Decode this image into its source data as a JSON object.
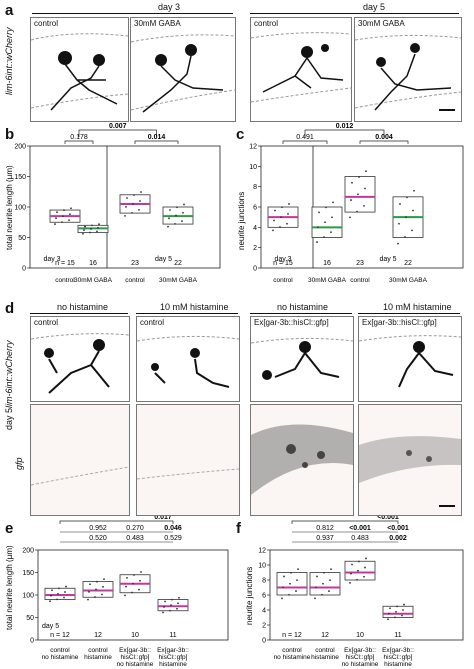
{
  "panel_letters": {
    "a": "a",
    "b": "b",
    "c": "c",
    "d": "d",
    "e": "e",
    "f": "f"
  },
  "a": {
    "day_labels": [
      "day 3",
      "day 5"
    ],
    "row_label": "lim-6int::wCherry",
    "images": [
      "control",
      "30mM GABA",
      "control",
      "30mM GABA"
    ]
  },
  "d": {
    "headers": [
      "no histamine",
      "10 mM histamine",
      "no histamine",
      "10 mM histamine"
    ],
    "row_labels": [
      "lim-6int::wCherry",
      "gfp"
    ],
    "side_label": "day 5",
    "images_top": [
      "control",
      "control",
      "Ex[gar-3b::hisCl::gfp]",
      "Ex[gar-3b::hisCl::gfp]"
    ]
  },
  "chart_data": [
    {
      "id": "b",
      "type": "box",
      "ylabel": "total neurite length (µm)",
      "yticks": [
        0,
        50,
        100,
        150,
        200
      ],
      "ylim": [
        0,
        200
      ],
      "groups": [
        {
          "day": "day 3",
          "categories": [
            "control",
            "30mM GABA"
          ],
          "n": [
            "n = 15",
            "16"
          ]
        },
        {
          "day": "day 5",
          "categories": [
            "control",
            "30mM GABA"
          ],
          "n": [
            "23",
            "22"
          ]
        }
      ],
      "xlabels": [
        "control",
        "30mM GABA",
        "control",
        "30mM GABA"
      ],
      "medians": [
        85,
        65,
        105,
        85
      ],
      "q1": [
        75,
        58,
        90,
        72
      ],
      "q3": [
        95,
        70,
        120,
        100
      ],
      "pvalues": [
        {
          "text": "0.178",
          "bold": false
        },
        {
          "text": "0.007",
          "bold": true
        },
        {
          "text": "0.014",
          "bold": true
        }
      ],
      "group_labels": [
        "day 3",
        "day 5"
      ]
    },
    {
      "id": "c",
      "type": "box",
      "ylabel": "neurite junctions",
      "yticks": [
        0,
        2,
        4,
        6,
        8,
        10,
        12
      ],
      "ylim": [
        0,
        12
      ],
      "groups": [
        {
          "day": "day 3",
          "n": [
            "n = 15",
            "16"
          ]
        },
        {
          "day": "day 5",
          "n": [
            "23",
            "22"
          ]
        }
      ],
      "xlabels": [
        "control",
        "30mM GABA",
        "control",
        "30mM GABA"
      ],
      "medians": [
        5,
        4,
        7,
        5
      ],
      "q1": [
        4,
        3,
        5.5,
        3
      ],
      "q3": [
        6,
        6,
        9,
        7
      ],
      "pvalues": [
        {
          "text": "0.491",
          "bold": false
        },
        {
          "text": "0.012",
          "bold": true
        },
        {
          "text": "0.004",
          "bold": true
        }
      ],
      "group_labels": [
        "day 3",
        "day 5"
      ]
    },
    {
      "id": "e",
      "type": "box",
      "ylabel": "total neurite length (µm)",
      "yticks": [
        0,
        50,
        100,
        150,
        200
      ],
      "ylim": [
        0,
        200
      ],
      "n": [
        "n = 12",
        "12",
        "10",
        "11"
      ],
      "xlabels": [
        [
          "control",
          "no histamine"
        ],
        [
          "control",
          "histamine"
        ],
        [
          "Ex[gar-3b::",
          "hisCl::gfp]",
          "no histamine"
        ],
        [
          "Ex[gar-3b::",
          "hisCl::gfp]",
          "histamine"
        ]
      ],
      "medians": [
        100,
        110,
        125,
        75
      ],
      "q1": [
        90,
        95,
        105,
        65
      ],
      "q3": [
        115,
        130,
        145,
        90
      ],
      "pvalues_rows": [
        [
          "0.017"
        ],
        [
          "0.952",
          "0.270",
          "0.046"
        ],
        [
          "0.520",
          "0.483",
          "0.529"
        ]
      ],
      "group_label": "day 5"
    },
    {
      "id": "f",
      "type": "box",
      "ylabel": "neurite junctions",
      "yticks": [
        0,
        2,
        4,
        6,
        8,
        10,
        12
      ],
      "ylim": [
        0,
        12
      ],
      "n": [
        "n = 12",
        "12",
        "10",
        "11"
      ],
      "xlabels": [
        [
          "control",
          "no histamine"
        ],
        [
          "control",
          "histamine"
        ],
        [
          "Ex[gar-3b::",
          "hisCl::gfp]",
          "no histamine"
        ],
        [
          "Ex[gar-3b::",
          "hisCl::gfp]",
          "histamine"
        ]
      ],
      "medians": [
        7,
        7,
        9,
        3.5
      ],
      "q1": [
        6,
        6,
        8,
        3
      ],
      "q3": [
        9,
        9,
        10.5,
        4.5
      ],
      "pvalues_rows": [
        [
          "<0.001"
        ],
        [
          "0.812",
          "<0.001",
          "<0.001"
        ],
        [
          "0.937",
          "0.483",
          "0.002"
        ]
      ]
    }
  ],
  "colors": {
    "ctrl_median": "#c0399a",
    "gaba_median": "#2a9a48",
    "box": "#333333",
    "point": "#333333",
    "frame": "#777777"
  }
}
